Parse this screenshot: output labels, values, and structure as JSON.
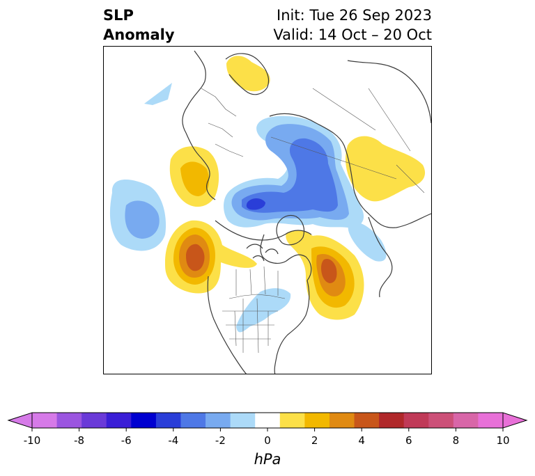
{
  "header": {
    "left_line1": "SLP",
    "left_line2": "Anomaly",
    "right_line1": "Init: Tue 26 Sep 2023",
    "right_line2": "Valid: 14 Oct – 20 Oct"
  },
  "colorbar": {
    "units": "hPa",
    "ticks": [
      "-10",
      "-8",
      "-6",
      "-4",
      "-2",
      "0",
      "2",
      "4",
      "6",
      "8",
      "10"
    ],
    "colors": [
      "#d67ae8",
      "#9b55e0",
      "#6a3ad8",
      "#3a1ed6",
      "#0000d0",
      "#2a3ed8",
      "#4e78e6",
      "#78aaf0",
      "#acdaf8",
      "#ffffff",
      "#fce048",
      "#f2b800",
      "#e08a12",
      "#c8561a",
      "#b0282a",
      "#c03a58",
      "#cc5078",
      "#d866a8",
      "#e870d8"
    ],
    "extend": "both"
  },
  "anomaly_colors": {
    "neg_2": "#acdaf8",
    "neg_4": "#78aaf0",
    "neg_6": "#4e78e6",
    "neg_8": "#2a3ed8",
    "pos_2": "#fce048",
    "pos_4": "#f2b800",
    "pos_6": "#e08a12",
    "pos_8": "#c8561a"
  }
}
